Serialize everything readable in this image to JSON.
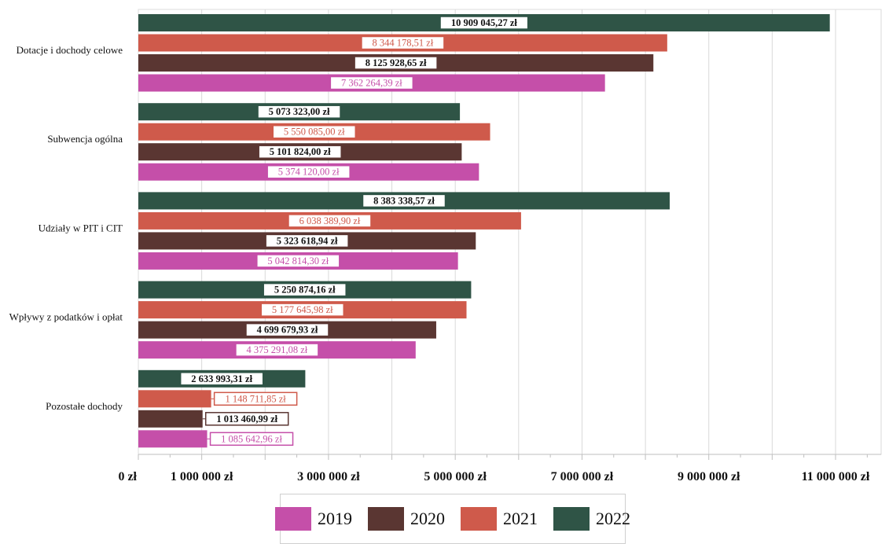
{
  "chart_data": {
    "type": "bar",
    "orientation": "horizontal",
    "categories": [
      "Dotacje i dochody celowe",
      "Subwencja ogólna",
      "Udziały w PIT i CIT",
      "Wpływy z podatków i opłat",
      "Pozostałe dochody"
    ],
    "series": [
      {
        "name": "2022",
        "color": "#2f5446",
        "values": [
          10909045.27,
          5073323.0,
          8383338.57,
          5250874.16,
          2633993.31
        ],
        "labels": [
          "10 909 045,27 zł",
          "5 073 323,00 zł",
          "8 383 338,57 zł",
          "5 250 874,16 zł",
          "2 633 993,31 zł"
        ]
      },
      {
        "name": "2021",
        "color": "#cf5a4b",
        "values": [
          8344178.51,
          5550085.0,
          6038389.9,
          5177645.98,
          1148711.85
        ],
        "labels": [
          "8 344 178,51 zł",
          "5 550 085,00 zł",
          "6 038 389,90 zł",
          "5 177 645,98 zł",
          "1 148 711,85 zł"
        ]
      },
      {
        "name": "2020",
        "color": "#5a3632",
        "values": [
          8125928.65,
          5101824.0,
          5323618.94,
          4699679.93,
          1013460.99
        ],
        "labels": [
          "8 125 928,65 zł",
          "5 101 824,00 zł",
          "5 323 618,94 zł",
          "4 699 679,93 zł",
          "1 013 460,99 zł"
        ]
      },
      {
        "name": "2019",
        "color": "#c54fa9",
        "values": [
          7362264.39,
          5374120.0,
          5042814.3,
          4375291.08,
          1085642.96
        ],
        "labels": [
          "7 362 264,39 zł",
          "5 374 120,00 zł",
          "5 042 814,30 zł",
          "4 375 291,08 zł",
          "1 085 642,96 zł"
        ]
      }
    ],
    "xlim": [
      0,
      11000000
    ],
    "x_ticks": [
      {
        "value": 0,
        "label": "0 zł"
      },
      {
        "value": 1000000,
        "label": "1 000 000 zł"
      },
      {
        "value": 3000000,
        "label": "3 000 000 zł"
      },
      {
        "value": 5000000,
        "label": "5 000 000 zł"
      },
      {
        "value": 7000000,
        "label": "7 000 000 zł"
      },
      {
        "value": 9000000,
        "label": "9 000 000 zł"
      },
      {
        "value": 11000000,
        "label": "11 000 000 zł"
      }
    ],
    "grid": true,
    "legend_position": "bottom",
    "legend": [
      "2019",
      "2020",
      "2021",
      "2022"
    ]
  }
}
